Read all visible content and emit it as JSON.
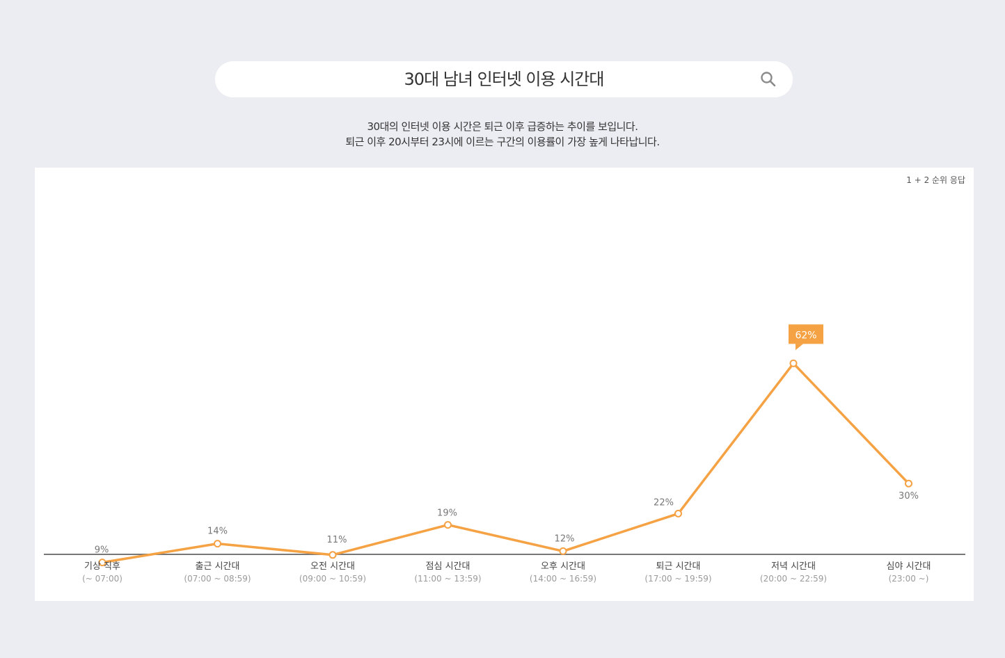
{
  "search": {
    "title": "30대 남녀 인터넷 이용 시간대",
    "icon": "search-icon"
  },
  "description": {
    "line1": "30대의 인터넷 이용 시간은 퇴근 이후 급증하는 추이를 보입니다.",
    "line2": "퇴근 이후 20시부터 23시에 이르는 구간의 이용률이 가장 높게 나타납니다."
  },
  "colors": {
    "line": "#f5a244",
    "highlight": "#f5a244",
    "axis": "#777777",
    "page_background": "#ebedf2"
  },
  "chart_data": {
    "type": "line",
    "title": "",
    "note": "1 + 2 순위 응답",
    "categories": [
      "기상 직후",
      "출근 시간대",
      "오전 시간대",
      "점심 시간대",
      "오후 시간대",
      "퇴근 시간대",
      "저녁 시간대",
      "심야 시간대"
    ],
    "category_sublabels": [
      "(~ 07:00)",
      "(07:00 ~ 08:59)",
      "(09:00 ~ 10:59)",
      "(11:00 ~ 13:59)",
      "(14:00 ~ 16:59)",
      "(17:00 ~ 19:59)",
      "(20:00 ~ 22:59)",
      "(23:00 ~)"
    ],
    "values": [
      9,
      14,
      11,
      19,
      12,
      22,
      62,
      30
    ],
    "value_labels": [
      "9%",
      "14%",
      "11%",
      "19%",
      "12%",
      "22%",
      "62%",
      "30%"
    ],
    "highlight_index": 6,
    "ylim": [
      0,
      70
    ],
    "grid": false,
    "legend": "none"
  }
}
